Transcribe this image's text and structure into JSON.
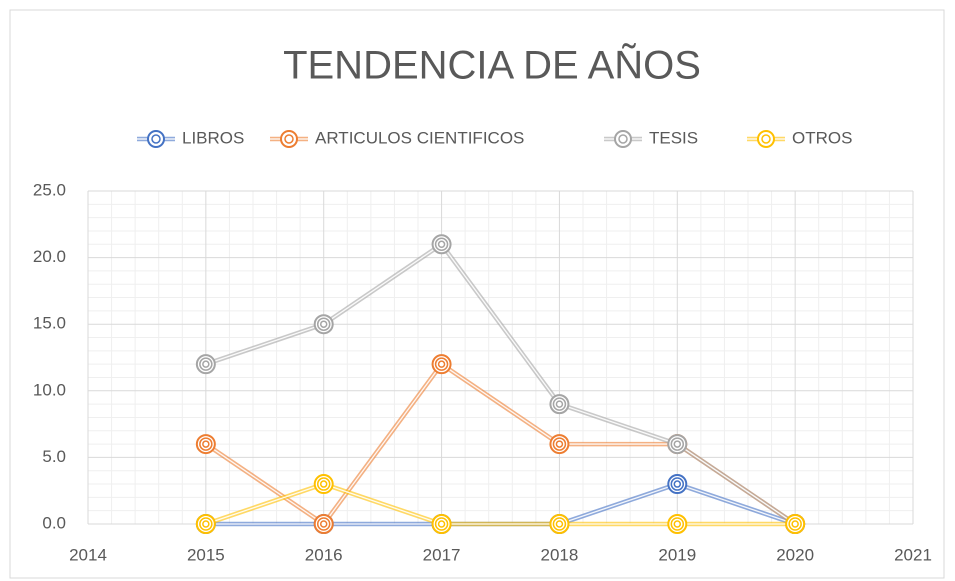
{
  "chart_data": {
    "type": "line",
    "title": "TENDENCIA DE AÑOS",
    "x": [
      2015,
      2016,
      2017,
      2018,
      2019,
      2020
    ],
    "series": [
      {
        "name": "LIBROS",
        "color": "#4472c4",
        "values": [
          0,
          0,
          0,
          0,
          3,
          0
        ]
      },
      {
        "name": "ARTICULOS CIENTIFICOS",
        "color": "#ed7d31",
        "values": [
          6,
          0,
          12,
          6,
          6,
          0
        ]
      },
      {
        "name": "TESIS",
        "color": "#a5a5a5",
        "values": [
          12,
          15,
          21,
          9,
          6,
          0
        ]
      },
      {
        "name": "OTROS",
        "color": "#ffc000",
        "values": [
          0,
          3,
          0,
          0,
          0,
          0
        ]
      }
    ],
    "xlim": [
      2014,
      2021
    ],
    "xticks": [
      2014,
      2015,
      2016,
      2017,
      2018,
      2019,
      2020,
      2021
    ],
    "ylim": [
      0,
      25
    ],
    "yticks": [
      {
        "value": 0,
        "label": "0.0"
      },
      {
        "value": 5,
        "label": "5.0"
      },
      {
        "value": 10,
        "label": "10.0"
      },
      {
        "value": 15,
        "label": "15.0"
      },
      {
        "value": 20,
        "label": "20.0"
      },
      {
        "value": 25,
        "label": "25.0"
      }
    ],
    "grid": true,
    "minor_grid": true,
    "legend": "top"
  }
}
